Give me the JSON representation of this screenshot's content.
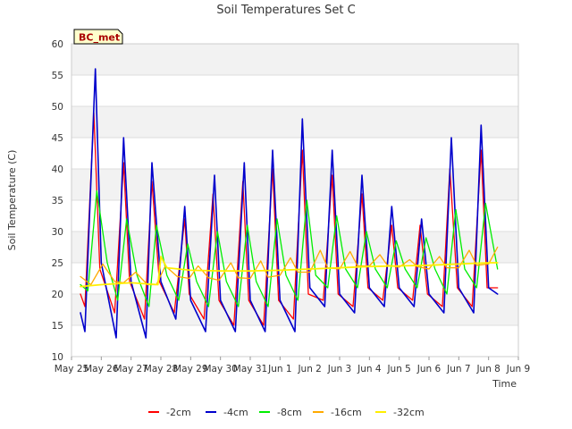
{
  "chart_data": {
    "type": "line",
    "title": "Soil Temperatures Set C",
    "xlabel": "Time",
    "ylabel": "Soil Temperature (C)",
    "station_badge": "BC_met",
    "xlim": [
      0,
      15
    ],
    "ylim": [
      10,
      60
    ],
    "x_ticks": [
      {
        "x": 0,
        "label": "May 25"
      },
      {
        "x": 1,
        "label": "May 26"
      },
      {
        "x": 2,
        "label": "May 27"
      },
      {
        "x": 3,
        "label": "May 28"
      },
      {
        "x": 4,
        "label": "May 29"
      },
      {
        "x": 5,
        "label": "May 30"
      },
      {
        "x": 6,
        "label": "May 31"
      },
      {
        "x": 7,
        "label": "Jun 1"
      },
      {
        "x": 8,
        "label": "Jun 2"
      },
      {
        "x": 9,
        "label": "Jun 3"
      },
      {
        "x": 10,
        "label": "Jun 4"
      },
      {
        "x": 11,
        "label": "Jun 5"
      },
      {
        "x": 12,
        "label": "Jun 6"
      },
      {
        "x": 13,
        "label": "Jun 7"
      },
      {
        "x": 14,
        "label": "Jun 8"
      },
      {
        "x": 15,
        "label": "Jun 9"
      }
    ],
    "y_ticks": [
      10,
      15,
      20,
      25,
      30,
      35,
      40,
      45,
      50,
      55,
      60
    ],
    "grid": true,
    "legend_position": "bottom",
    "x_unit_note": "x values are days elapsed since the May 25 tick",
    "series": [
      {
        "name": "-2cm",
        "color": "#ff0000",
        "width": 1.3,
        "x": [
          0.3,
          0.45,
          0.75,
          0.95,
          1.45,
          1.75,
          1.95,
          2.45,
          2.7,
          2.95,
          3.45,
          3.8,
          3.95,
          4.45,
          4.75,
          4.95,
          5.45,
          5.75,
          5.95,
          6.45,
          6.75,
          6.95,
          7.45,
          7.75,
          7.95,
          8.45,
          8.75,
          8.95,
          9.45,
          9.75,
          9.95,
          10.45,
          10.75,
          10.95,
          11.45,
          11.7,
          11.95,
          12.45,
          12.7,
          12.95,
          13.45,
          13.75,
          13.95,
          14.3
        ],
        "y": [
          20,
          18,
          49,
          24,
          17,
          41,
          22,
          16,
          38,
          22,
          17,
          32,
          20,
          16,
          36,
          19,
          15,
          38,
          19,
          15,
          40,
          19,
          16,
          43,
          20,
          19,
          39,
          20,
          18,
          36,
          21,
          19,
          31,
          21,
          19,
          31,
          20,
          18,
          40,
          21,
          18,
          43,
          21,
          21
        ]
      },
      {
        "name": "-4cm",
        "color": "#0000cc",
        "width": 1.6,
        "x": [
          0.3,
          0.45,
          0.8,
          1.0,
          1.5,
          1.75,
          2.0,
          2.5,
          2.7,
          3.0,
          3.5,
          3.8,
          4.0,
          4.5,
          4.8,
          5.0,
          5.5,
          5.8,
          6.0,
          6.5,
          6.75,
          7.0,
          7.5,
          7.75,
          8.0,
          8.5,
          8.75,
          9.0,
          9.5,
          9.75,
          10.0,
          10.5,
          10.75,
          11.0,
          11.5,
          11.75,
          12.0,
          12.5,
          12.75,
          13.0,
          13.5,
          13.75,
          14.0,
          14.3
        ],
        "y": [
          17,
          14,
          56,
          25,
          13,
          45,
          22,
          13,
          41,
          22,
          16,
          34,
          19,
          14,
          39,
          19,
          14,
          41,
          19,
          14,
          43,
          19,
          14,
          48,
          21,
          18,
          43,
          20,
          17,
          39,
          21,
          18,
          34,
          21,
          18,
          32,
          20,
          17,
          45,
          21,
          17,
          47,
          21,
          20
        ]
      },
      {
        "name": "-8cm",
        "color": "#00ee00",
        "width": 1.3,
        "x": [
          0.3,
          0.55,
          0.85,
          1.2,
          1.55,
          1.85,
          2.2,
          2.6,
          2.85,
          3.2,
          3.6,
          3.9,
          4.2,
          4.6,
          4.9,
          5.2,
          5.6,
          5.9,
          6.2,
          6.6,
          6.9,
          7.2,
          7.6,
          7.9,
          8.2,
          8.6,
          8.9,
          9.2,
          9.6,
          9.9,
          10.2,
          10.6,
          10.9,
          11.2,
          11.6,
          11.9,
          12.2,
          12.6,
          12.9,
          13.2,
          13.6,
          13.9,
          14.3
        ],
        "y": [
          21.5,
          20.5,
          36.5,
          25,
          19,
          32,
          23,
          18,
          31,
          23,
          19,
          28,
          22,
          18,
          30,
          22,
          18,
          31,
          22,
          18,
          32,
          23,
          19,
          35,
          23,
          21,
          32.5,
          24,
          21,
          30,
          24,
          21,
          28.5,
          24,
          21,
          29,
          24,
          20,
          33.5,
          24,
          21,
          34.5,
          24
        ]
      },
      {
        "name": "-16cm",
        "color": "#ffaa00",
        "width": 1.3,
        "x": [
          0.3,
          0.65,
          1.05,
          1.45,
          1.75,
          2.15,
          2.55,
          2.85,
          3.15,
          3.55,
          3.95,
          4.25,
          4.6,
          4.95,
          5.35,
          5.6,
          6.0,
          6.35,
          6.6,
          7.0,
          7.35,
          7.6,
          8.0,
          8.35,
          8.6,
          9.0,
          9.35,
          9.6,
          10.0,
          10.35,
          10.6,
          11.0,
          11.35,
          11.6,
          12.0,
          12.35,
          12.6,
          13.0,
          13.35,
          13.6,
          14.0,
          14.3
        ],
        "y": [
          22.8,
          21.5,
          24.8,
          22.0,
          21.8,
          23.5,
          21.5,
          21.5,
          24.5,
          22.8,
          22.5,
          24.5,
          22.6,
          22.2,
          25.0,
          22.6,
          22.5,
          25.3,
          22.7,
          23.0,
          25.8,
          23.5,
          23.5,
          27.0,
          24.2,
          24.0,
          26.8,
          24.5,
          24.5,
          26.3,
          24.6,
          24.3,
          25.5,
          24.4,
          24.0,
          26.0,
          24.2,
          24.2,
          27.0,
          24.6,
          24.8,
          27.5
        ]
      },
      {
        "name": "-32cm",
        "color": "#ffee00",
        "width": 1.8,
        "x": [
          0.3,
          1.0,
          2.0,
          2.9,
          3.0,
          3.2,
          4.0,
          5.0,
          6.0,
          7.0,
          8.0,
          9.0,
          10.0,
          11.0,
          12.0,
          13.0,
          14.0,
          14.3
        ],
        "y": [
          21.2,
          21.5,
          21.8,
          21.5,
          26.0,
          24.2,
          23.8,
          23.7,
          23.7,
          23.8,
          24.0,
          24.2,
          24.4,
          24.5,
          24.6,
          24.8,
          25.0,
          25.0
        ]
      }
    ]
  }
}
